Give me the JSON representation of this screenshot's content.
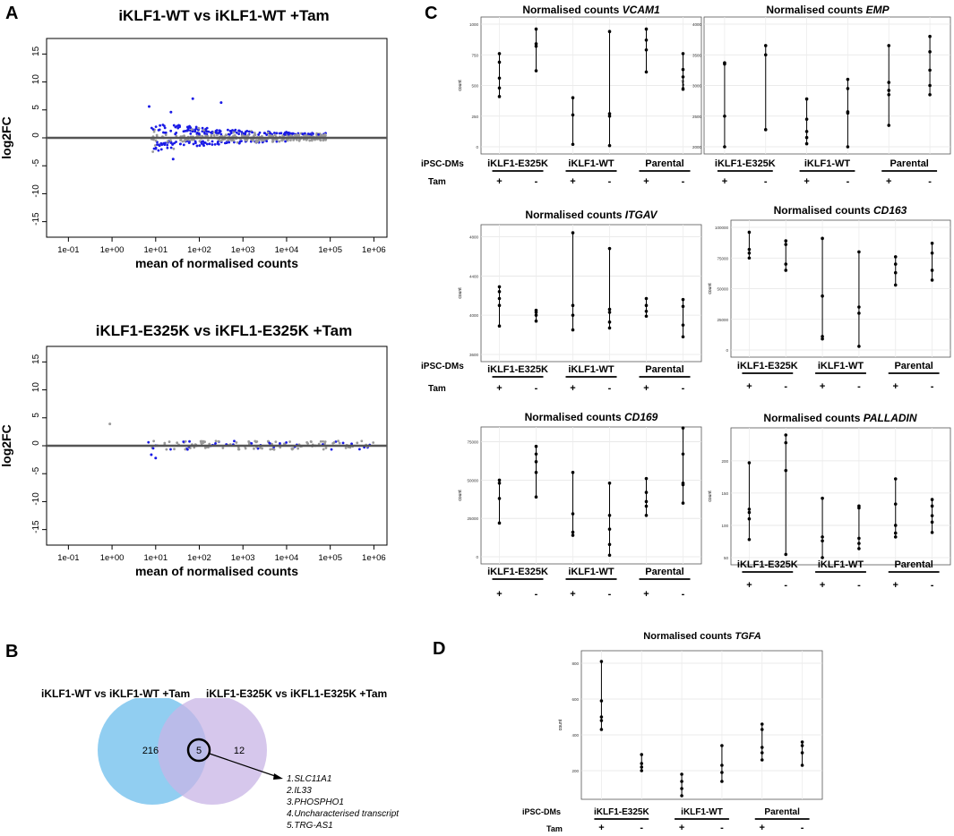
{
  "panels": {
    "A": "A",
    "B": "B",
    "C": "C",
    "D": "D"
  },
  "ma_plots": [
    {
      "title": "iKLF1-WT vs iKLF1-WT +Tam",
      "ylabel": "log2FC",
      "xlabel": "mean of normalised counts",
      "yticks": [
        15,
        10,
        5,
        0,
        -5,
        -10,
        -15
      ],
      "xticks": [
        "1e-01",
        "1e+00",
        "1e+01",
        "1e+02",
        "1e+03",
        "1e+04",
        "1e+05",
        "1e+06"
      ]
    },
    {
      "title": "iKLF1-E325K vs iKFL1-E325K +Tam",
      "ylabel": "log2FC",
      "xlabel": "mean of normalised counts",
      "yticks": [
        15,
        10,
        5,
        0,
        -5,
        -10,
        -15
      ],
      "xticks": [
        "1e-01",
        "1e+00",
        "1e+01",
        "1e+02",
        "1e+03",
        "1e+04",
        "1e+05",
        "1e+06"
      ]
    }
  ],
  "venn": {
    "left_label": "iKLF1-WT vs iKLF1-WT +Tam",
    "right_label": "iKLF1-E325K vs iKFL1-E325K +Tam",
    "left_only": "216",
    "overlap": "5",
    "right_only": "12",
    "genes": [
      "1.SLC11A1",
      "2.IL33",
      "3.PHOSPHO1",
      "4.Uncharacterised transcript",
      "5.TRG-AS1"
    ]
  },
  "row_labels": {
    "cells": "iPSC-DMs",
    "tam": "Tam"
  },
  "groups": [
    "iKLF1-E325K",
    "iKLF1-WT",
    "Parental"
  ],
  "tam_signs": [
    "+",
    "-",
    "+",
    "-",
    "+",
    "-"
  ],
  "count_title_prefix": "Normalised counts",
  "chart_data": [
    {
      "type": "scatter",
      "gene": "VCAM1",
      "ylabel": "count",
      "yticks": [
        "0",
        "250",
        "500",
        "750",
        "1000"
      ],
      "ylim": [
        0,
        1000
      ],
      "series": [
        [
          410,
          480,
          560,
          690,
          760
        ],
        [
          620,
          820,
          840,
          960
        ],
        [
          20,
          260,
          400
        ],
        [
          10,
          250,
          270,
          940
        ],
        [
          610,
          790,
          870,
          960
        ],
        [
          470,
          570,
          630,
          760
        ]
      ]
    },
    {
      "type": "scatter",
      "gene": "EMP",
      "ylabel": "count",
      "yticks": [
        "2000",
        "2500",
        "3000",
        "3500",
        "4000"
      ],
      "ylim": [
        2000,
        4000
      ],
      "series": [
        [
          2000,
          2500,
          3350,
          3370
        ],
        [
          2280,
          3500,
          3650
        ],
        [
          2050,
          2150,
          2250,
          2450,
          2780
        ],
        [
          2000,
          2550,
          2570,
          2950,
          3100
        ],
        [
          2350,
          2850,
          2920,
          3050,
          3650
        ],
        [
          2850,
          3000,
          3250,
          3550,
          3800
        ]
      ]
    },
    {
      "type": "scatter",
      "gene": "ITGAV",
      "ylabel": "count",
      "yticks": [
        "3600",
        "4000",
        "4400",
        "4800"
      ],
      "ylim": [
        3600,
        4850
      ],
      "series": [
        [
          3890,
          4100,
          4170,
          4240,
          4290
        ],
        [
          3940,
          4000,
          4030,
          4050
        ],
        [
          3850,
          4000,
          4100,
          4840
        ],
        [
          3870,
          3930,
          4030,
          4060,
          4680
        ],
        [
          3990,
          4040,
          4100,
          4170
        ],
        [
          3780,
          3900,
          4090,
          4160
        ]
      ]
    },
    {
      "type": "scatter",
      "gene": "CD163",
      "ylabel": "count",
      "yticks": [
        "0",
        "25000",
        "50000",
        "75000",
        "100000"
      ],
      "ylim": [
        0,
        100000
      ],
      "series": [
        [
          75000,
          79000,
          82000,
          96000
        ],
        [
          65000,
          70000,
          86000,
          89000
        ],
        [
          9000,
          11000,
          44000,
          91000
        ],
        [
          3000,
          30000,
          35000,
          80000
        ],
        [
          53000,
          63000,
          70000,
          76000
        ],
        [
          57000,
          65000,
          79000,
          87000
        ]
      ]
    },
    {
      "type": "scatter",
      "gene": "CD169",
      "ylabel": "count",
      "yticks": [
        "0",
        "25000",
        "50000",
        "75000"
      ],
      "ylim": [
        0,
        80000
      ],
      "series": [
        [
          22000,
          38000,
          48000,
          50000
        ],
        [
          39000,
          55000,
          62000,
          67000,
          72000
        ],
        [
          14000,
          16000,
          28000,
          55000
        ],
        [
          1000,
          8000,
          18000,
          27000,
          48000
        ],
        [
          27000,
          33000,
          36000,
          42000,
          51000
        ],
        [
          35000,
          47000,
          48000,
          67000,
          84000
        ]
      ]
    },
    {
      "type": "scatter",
      "gene": "PALLADIN",
      "ylabel": "count",
      "yticks": [
        "50",
        "100",
        "150",
        "200"
      ],
      "ylim": [
        50,
        240
      ],
      "series": [
        [
          78,
          110,
          120,
          125,
          197
        ],
        [
          55,
          185,
          228,
          240
        ],
        [
          50,
          76,
          82,
          142
        ],
        [
          64,
          72,
          80,
          127,
          130
        ],
        [
          82,
          88,
          100,
          133,
          172
        ],
        [
          89,
          105,
          115,
          130,
          140
        ]
      ]
    },
    {
      "type": "scatter",
      "gene": "TGFA",
      "ylabel": "count",
      "yticks": [
        "200",
        "400",
        "600",
        "800"
      ],
      "ylim": [
        80,
        830
      ],
      "series": [
        [
          430,
          480,
          500,
          590,
          810
        ],
        [
          200,
          220,
          240,
          290
        ],
        [
          60,
          100,
          140,
          180
        ],
        [
          140,
          190,
          230,
          340
        ],
        [
          260,
          300,
          330,
          430,
          460
        ],
        [
          230,
          300,
          340,
          360
        ]
      ]
    }
  ]
}
